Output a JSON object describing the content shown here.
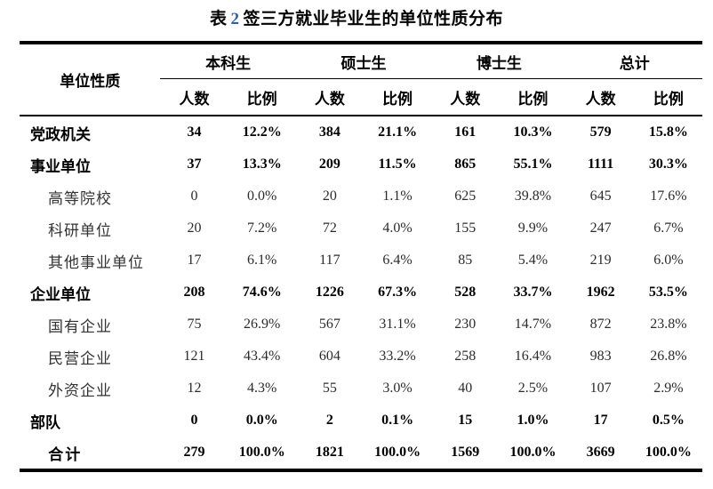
{
  "title": {
    "prefix": "表",
    "number": "2",
    "suffix": "签三方就业毕业生的单位性质分布"
  },
  "colors": {
    "title_number_blue": "#2e5fae",
    "text_black": "#000000",
    "rule_black": "#000000"
  },
  "table": {
    "row_header": "单位性质",
    "groups": [
      {
        "label": "本科生"
      },
      {
        "label": "硕士生"
      },
      {
        "label": "博士生"
      },
      {
        "label": "总计"
      }
    ],
    "sub_headers": {
      "count": "人数",
      "ratio": "比例"
    },
    "rows": [
      {
        "label": "党政机关",
        "level": "main",
        "cells": [
          "34",
          "12.2%",
          "384",
          "21.1%",
          "161",
          "10.3%",
          "579",
          "15.8%"
        ]
      },
      {
        "label": "事业单位",
        "level": "main",
        "cells": [
          "37",
          "13.3%",
          "209",
          "11.5%",
          "865",
          "55.1%",
          "1111",
          "30.3%"
        ]
      },
      {
        "label": "高等院校",
        "level": "sub",
        "cells": [
          "0",
          "0.0%",
          "20",
          "1.1%",
          "625",
          "39.8%",
          "645",
          "17.6%"
        ]
      },
      {
        "label": "科研单位",
        "level": "sub",
        "cells": [
          "20",
          "7.2%",
          "72",
          "4.0%",
          "155",
          "9.9%",
          "247",
          "6.7%"
        ]
      },
      {
        "label": "其他事业单位",
        "level": "sub",
        "cells": [
          "17",
          "6.1%",
          "117",
          "6.4%",
          "85",
          "5.4%",
          "219",
          "6.0%"
        ]
      },
      {
        "label": "企业单位",
        "level": "main",
        "cells": [
          "208",
          "74.6%",
          "1226",
          "67.3%",
          "528",
          "33.7%",
          "1962",
          "53.5%"
        ]
      },
      {
        "label": "国有企业",
        "level": "sub",
        "cells": [
          "75",
          "26.9%",
          "567",
          "31.1%",
          "230",
          "14.7%",
          "872",
          "23.8%"
        ]
      },
      {
        "label": "民营企业",
        "level": "sub",
        "cells": [
          "121",
          "43.4%",
          "604",
          "33.2%",
          "258",
          "16.4%",
          "983",
          "26.8%"
        ]
      },
      {
        "label": "外资企业",
        "level": "sub",
        "cells": [
          "12",
          "4.3%",
          "55",
          "3.0%",
          "40",
          "2.5%",
          "107",
          "2.9%"
        ]
      },
      {
        "label": "部队",
        "level": "main",
        "cells": [
          "0",
          "0.0%",
          "2",
          "0.1%",
          "15",
          "1.0%",
          "17",
          "0.5%"
        ]
      },
      {
        "label": "合计",
        "level": "total",
        "cells": [
          "279",
          "100.0%",
          "1821",
          "100.0%",
          "1569",
          "100.0%",
          "3669",
          "100.0%"
        ]
      }
    ]
  }
}
